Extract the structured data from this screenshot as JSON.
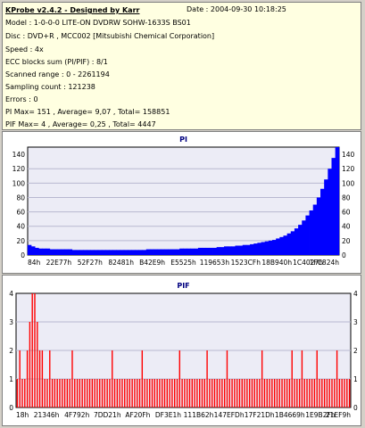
{
  "info": {
    "title": "KProbe v2.4.2 - Designed by Karr",
    "date": "Date : 2004-09-30 10:18:25",
    "lines": [
      "Model : 1-0-0-0 LITE-ON DVDRW SOHW-1633S BS01",
      "Disc : DVD+R , MCC002 [Mitsubishi Chemical Corporation]",
      "Speed : 4x",
      "ECC blocks sum (PI/PIF) : 8/1",
      "Scanned range : 0 - 2261194",
      "Sampling count : 121238",
      "Errors : 0",
      "PI Max= 151 , Average= 9,07 , Total= 158851",
      "PIF Max= 4 , Average= 0,25 , Total= 4447"
    ]
  },
  "colors": {
    "info_bg": "#ffffe1",
    "plot_bg": "#ececf6",
    "pi_series": "#0000ff",
    "pif_series": "#ff0000",
    "title": "#000080"
  },
  "chart_data": [
    {
      "type": "area",
      "title": "PI",
      "ylim": [
        0,
        150
      ],
      "y_ticks": [
        "0",
        "20",
        "40",
        "60",
        "80",
        "100",
        "120",
        "140"
      ],
      "x_ticks": [
        "84h",
        "22E77h",
        "52F27h",
        "82481h",
        "B42E9h",
        "E5525h",
        "119653h",
        "1523CFh",
        "18B940h",
        "1C4027h",
        "1FC824h"
      ],
      "series": [
        {
          "values": [
            14,
            12,
            10,
            9,
            9,
            9,
            8,
            8,
            8,
            8,
            8,
            8,
            7,
            7,
            7,
            7,
            7,
            7,
            7,
            7,
            7,
            7,
            7,
            7,
            7,
            7,
            7,
            7,
            7,
            7,
            7,
            7,
            8,
            8,
            8,
            8,
            8,
            8,
            8,
            8,
            8,
            9,
            9,
            9,
            9,
            9,
            10,
            10,
            10,
            10,
            10,
            11,
            11,
            12,
            12,
            12,
            13,
            13,
            14,
            14,
            15,
            16,
            17,
            18,
            19,
            20,
            21,
            23,
            25,
            27,
            30,
            33,
            37,
            42,
            48,
            55,
            62,
            70,
            80,
            92,
            105,
            120,
            135,
            150
          ]
        }
      ]
    },
    {
      "type": "bar",
      "title": "PIF",
      "ylim": [
        0,
        4
      ],
      "y_ticks": [
        "0",
        "1",
        "2",
        "3",
        "4"
      ],
      "x_ticks": [
        "18h",
        "21346h",
        "4F792h",
        "7DD21h",
        "AF20Fh",
        "DF3E1h",
        "111B62h",
        "147EFDh",
        "17F21Dh",
        "1B4669h",
        "1E9B2Fh",
        "21EF9h"
      ],
      "series": [
        {
          "values": [
            1,
            2,
            1,
            1,
            2,
            3,
            4,
            4,
            3,
            2,
            2,
            1,
            1,
            2,
            1,
            1,
            1,
            1,
            1,
            1,
            1,
            1,
            2,
            1,
            1,
            1,
            1,
            1,
            1,
            1,
            1,
            1,
            1,
            1,
            1,
            1,
            1,
            1,
            2,
            1,
            1,
            1,
            1,
            1,
            1,
            1,
            1,
            1,
            1,
            1,
            2,
            1,
            1,
            1,
            1,
            1,
            1,
            1,
            1,
            1,
            1,
            1,
            1,
            1,
            1,
            2,
            1,
            1,
            1,
            1,
            1,
            1,
            1,
            1,
            1,
            1,
            2,
            1,
            1,
            1,
            1,
            1,
            1,
            1,
            2,
            1,
            1,
            1,
            1,
            1,
            1,
            1,
            1,
            1,
            1,
            1,
            1,
            1,
            2,
            1,
            1,
            1,
            1,
            1,
            1,
            1,
            1,
            1,
            1,
            1,
            2,
            1,
            1,
            1,
            2,
            1,
            1,
            1,
            1,
            1,
            2,
            1,
            1,
            1,
            1,
            1,
            1,
            1,
            2,
            1,
            1,
            1,
            1,
            1
          ]
        }
      ]
    }
  ]
}
